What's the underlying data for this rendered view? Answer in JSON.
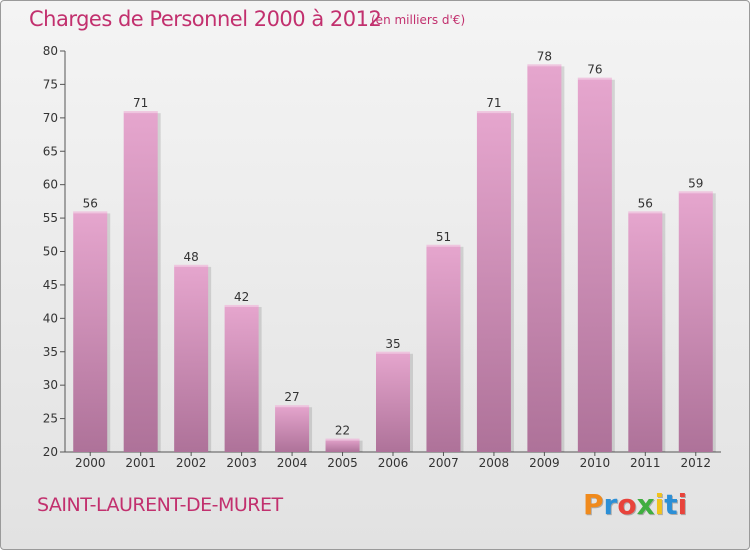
{
  "header": {
    "title": "Charges de Personnel 2000 à 2012",
    "subtitle": "(en milliers d'€)"
  },
  "footer": {
    "commune": "SAINT-LAURENT-DE-MURET",
    "logo": "Proxiti"
  },
  "colors": {
    "accent": "#c2306e",
    "bar_top": "#e6a6ce",
    "bar_bottom": "#ae7299"
  },
  "chart_data": {
    "type": "bar",
    "title": "Charges de Personnel 2000 à 2012",
    "subtitle": "(en milliers d'€)",
    "categories": [
      "2000",
      "2001",
      "2002",
      "2003",
      "2004",
      "2005",
      "2006",
      "2007",
      "2008",
      "2009",
      "2010",
      "2011",
      "2012"
    ],
    "values": [
      56,
      71,
      48,
      42,
      27,
      22,
      35,
      51,
      71,
      78,
      76,
      56,
      59
    ],
    "ylim": [
      20,
      80
    ],
    "yticks": [
      20,
      25,
      30,
      35,
      40,
      45,
      50,
      55,
      60,
      65,
      70,
      75,
      80
    ],
    "grid": false,
    "legend": "none"
  }
}
